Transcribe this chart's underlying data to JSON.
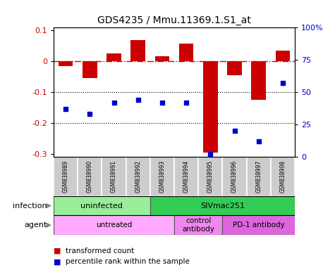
{
  "title": "GDS4235 / Mmu.11369.1.S1_at",
  "samples": [
    "GSM838989",
    "GSM838990",
    "GSM838991",
    "GSM838992",
    "GSM838993",
    "GSM838994",
    "GSM838995",
    "GSM838996",
    "GSM838997",
    "GSM838998"
  ],
  "bar_values": [
    -0.015,
    -0.055,
    0.025,
    0.068,
    0.015,
    0.058,
    -0.295,
    -0.045,
    -0.125,
    0.035
  ],
  "dot_percentiles": [
    37,
    33,
    42,
    44,
    42,
    42,
    2,
    20,
    12,
    57
  ],
  "bar_color": "#CC0000",
  "dot_color": "#0000CC",
  "ylim_min": -0.31,
  "ylim_max": 0.11,
  "yticks_left": [
    -0.3,
    -0.2,
    -0.1,
    0.0,
    0.1
  ],
  "ytick_labels_left": [
    "-0.3",
    "-0.2",
    "-0.1",
    "0",
    "0.1"
  ],
  "yticks_right": [
    0,
    25,
    50,
    75,
    100
  ],
  "ytick_labels_right": [
    "0",
    "25",
    "50",
    "75",
    "100%"
  ],
  "hline_y": 0.0,
  "grid_lines": [
    -0.1,
    -0.2
  ],
  "infection_groups": [
    {
      "label": "uninfected",
      "start": 0,
      "end": 4,
      "color": "#99EE99"
    },
    {
      "label": "SIVmac251",
      "start": 4,
      "end": 10,
      "color": "#33CC55"
    }
  ],
  "agent_groups": [
    {
      "label": "untreated",
      "start": 0,
      "end": 5,
      "color": "#FFAAFF"
    },
    {
      "label": "control\nantibody",
      "start": 5,
      "end": 7,
      "color": "#EE88EE"
    },
    {
      "label": "PD-1 antibody",
      "start": 7,
      "end": 10,
      "color": "#DD66DD"
    }
  ],
  "legend_items": [
    {
      "label": "transformed count",
      "color": "#CC0000"
    },
    {
      "label": "percentile rank within the sample",
      "color": "#0000CC"
    }
  ],
  "infection_label": "infection",
  "agent_label": "agent",
  "sample_bg_color": "#CCCCCC",
  "sample_border_color": "#888888"
}
